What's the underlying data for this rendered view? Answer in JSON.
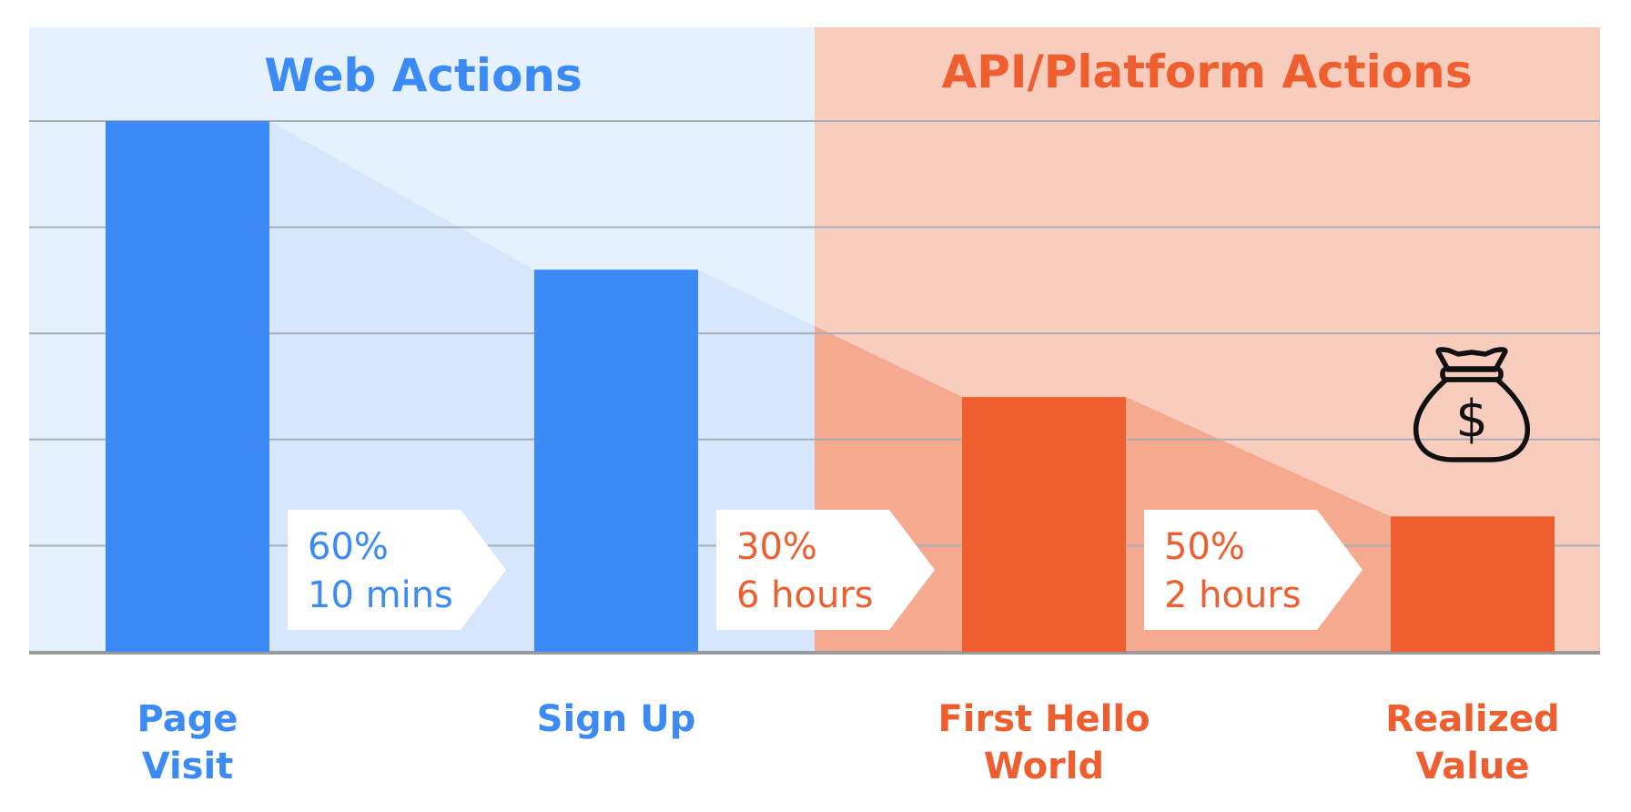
{
  "chart_data": {
    "type": "bar",
    "sections": [
      {
        "title": "Web Actions",
        "color": "#3b8af5",
        "background": "#e6f1fe"
      },
      {
        "title": "API/Platform Actions",
        "color": "#ee5e2e",
        "background": "#f9cdbd"
      }
    ],
    "categories": [
      "Page Visit",
      "Sign Up",
      "First Hello World",
      "Realized Value"
    ],
    "category_label_lines": [
      [
        "Page",
        "Visit"
      ],
      [
        "Sign Up"
      ],
      [
        "First Hello",
        "World"
      ],
      [
        "Realized",
        "Value"
      ]
    ],
    "category_section": [
      0,
      0,
      1,
      1
    ],
    "values": [
      100,
      72,
      48,
      25.5
    ],
    "ylim": [
      0,
      100
    ],
    "gridlines": [
      20,
      40,
      60,
      80,
      100
    ],
    "grid": true,
    "conversions": [
      {
        "rate": "60%",
        "time": "10 mins",
        "color": "#3b8af5"
      },
      {
        "rate": "30%",
        "time": "6 hours",
        "color": "#ee5e2e"
      },
      {
        "rate": "50%",
        "time": "2 hours",
        "color": "#ee5e2e"
      }
    ],
    "annotation_icon": "money-bag-icon",
    "xlabel": "",
    "ylabel": ""
  }
}
